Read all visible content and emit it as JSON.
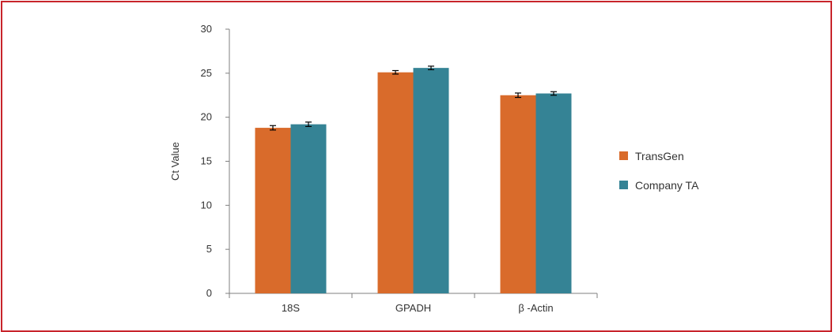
{
  "chart_data": {
    "type": "bar",
    "categories": [
      "18S",
      "GPADH",
      "β -Actin"
    ],
    "series": [
      {
        "name": "TransGen",
        "color": "#d96b2b",
        "values": [
          18.8,
          25.1,
          22.5
        ],
        "errors": [
          0.25,
          0.2,
          0.25
        ]
      },
      {
        "name": "Company TA",
        "color": "#358395",
        "values": [
          19.2,
          25.6,
          22.7
        ],
        "errors": [
          0.25,
          0.2,
          0.2
        ]
      }
    ],
    "ylabel": "Ct Value",
    "xlabel": "",
    "ylim": [
      0,
      30
    ],
    "yticks": [
      0,
      5,
      10,
      15,
      20,
      25,
      30
    ],
    "grid": false,
    "legend_position": "right"
  }
}
